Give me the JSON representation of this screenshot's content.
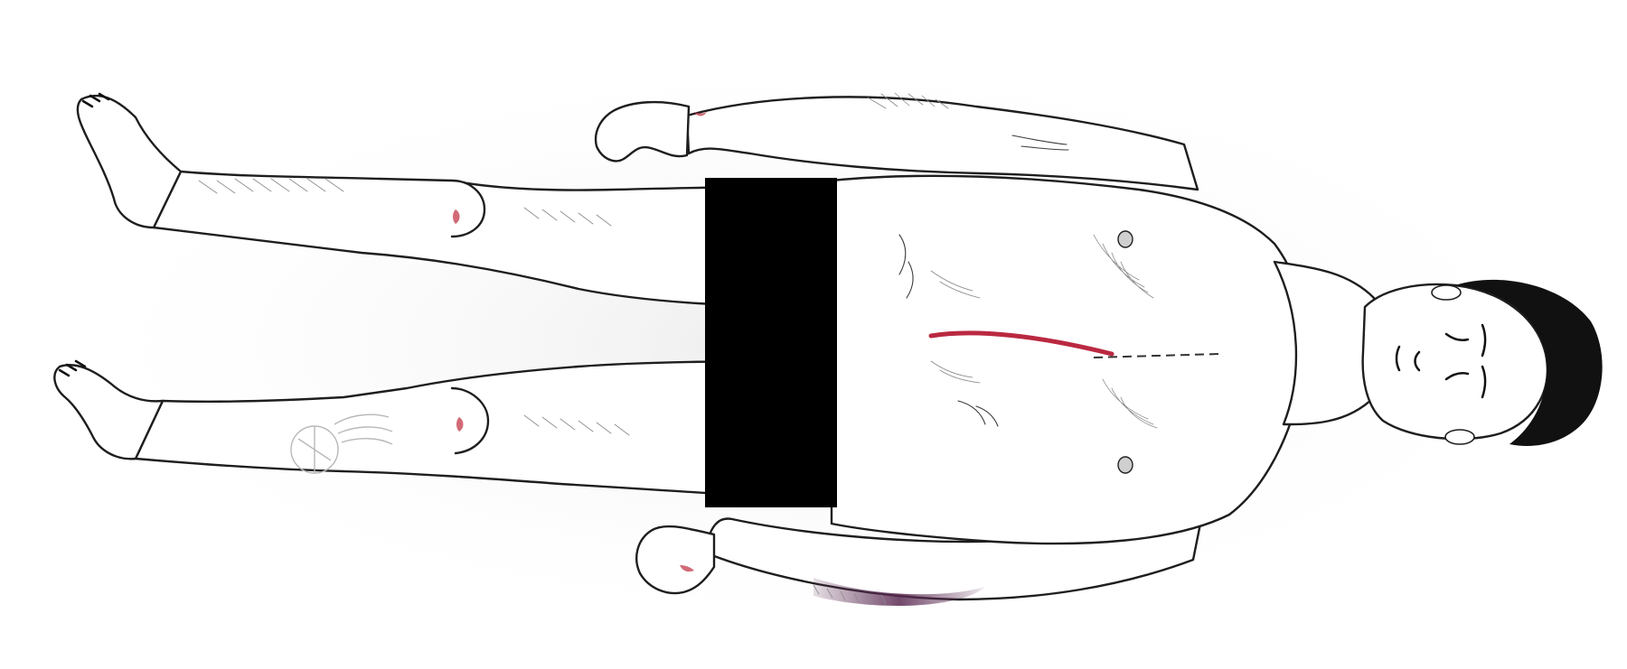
{
  "figure": {
    "subject": "supine-body-diagram",
    "colors": {
      "outline": "#1e1e1e",
      "skin": "#ffffff",
      "hair": "#111111",
      "wound": "#b3122c",
      "bruise": "#5a2a52",
      "censor_bar": "#000000"
    },
    "icons": [
      "head-icon",
      "torso-icon",
      "incision-icon",
      "bruise-icon",
      "tattoo-icon",
      "censor-bar-icon"
    ]
  }
}
